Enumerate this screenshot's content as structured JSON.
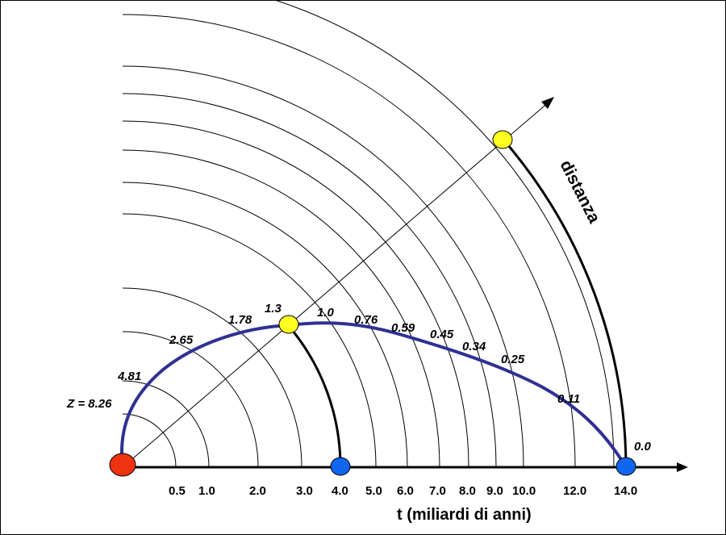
{
  "diagram": {
    "x_axis_title": "t (miliardi di anni)",
    "distance_label": "distanza",
    "t_ticks": [
      "0.5",
      "1.0",
      "2.0",
      "3.0",
      "4.0",
      "5.0",
      "6.0",
      "7.0",
      "8.0",
      "9.0",
      "10.0",
      "12.0",
      "14.0"
    ],
    "redshift_labels": [
      "Z = 8.26",
      "4.81",
      "2.65",
      "1.78",
      "1.3",
      "1.0",
      "0.76",
      "0.59",
      "0.45",
      "0.34",
      "0.25",
      "0.11",
      "0.0"
    ],
    "colors": {
      "curve": "#2e3192",
      "origin_dot": "#ee3311",
      "blue_dot": "#1166ee",
      "yellow_dot": "#ffff22",
      "lines": "#000000"
    }
  }
}
